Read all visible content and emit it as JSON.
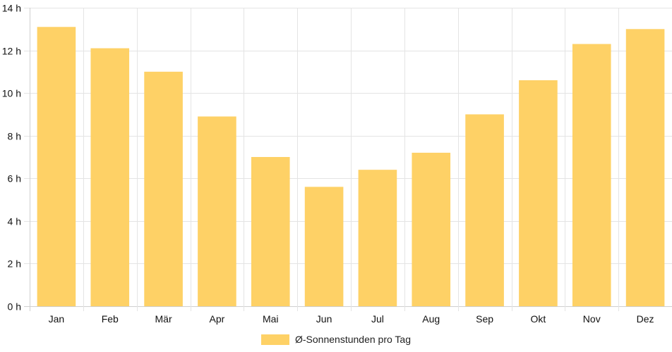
{
  "chart_data": {
    "type": "bar",
    "categories": [
      "Jan",
      "Feb",
      "Mär",
      "Apr",
      "Mai",
      "Jun",
      "Jul",
      "Aug",
      "Sep",
      "Okt",
      "Nov",
      "Dez"
    ],
    "series": [
      {
        "name": "Ø-Sonnenstunden pro Tag",
        "values": [
          13.1,
          12.1,
          11.0,
          8.9,
          7.0,
          5.6,
          6.4,
          7.2,
          9.0,
          10.6,
          12.3,
          13.0
        ]
      }
    ],
    "ylim": [
      0,
      14
    ],
    "yticks": [
      0,
      2,
      4,
      6,
      8,
      10,
      12,
      14
    ],
    "ytick_labels": [
      "0 h",
      "2 h",
      "4 h",
      "6 h",
      "8 h",
      "10 h",
      "12 h",
      "14 h"
    ],
    "grid": true,
    "legend_position": "bottom",
    "colors": {
      "bar": "#fed166",
      "grid": "#e4e4e4",
      "axis": "#cfcfcf",
      "text": "#111111"
    }
  }
}
